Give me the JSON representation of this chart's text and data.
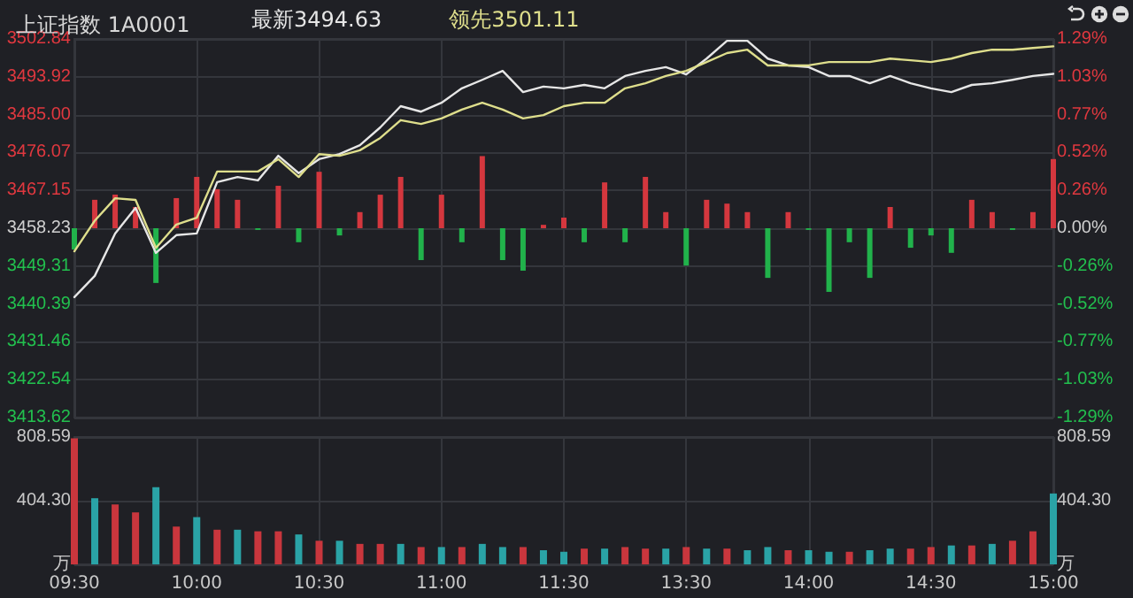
{
  "chart_data": [
    {
      "type": "line",
      "title": "上证指数 1A0001",
      "series": [
        {
          "type": "bar",
          "base": [
            3458.23,
            3458.23,
            3458.23,
            3458.23,
            3458.23,
            3458.23,
            3458.23,
            3458.23,
            3458.23,
            3458.23,
            3458.23,
            3458.23,
            3458.23,
            3458.23,
            3458.23,
            3458.23,
            3458.23,
            3458.23,
            3458.23,
            3458.23,
            3458.23,
            3458.23,
            3458.23,
            3458.23,
            3458.23,
            3458.23,
            3458.23,
            3458.23,
            3458.23,
            3458.23,
            3458.23,
            3458.23,
            3458.23,
            3458.23,
            3458.23,
            3458.23,
            3458.23,
            3458.23,
            3458.23,
            3458.23,
            3458.23,
            3458.23,
            3458.23,
            3458.23,
            3458.23,
            3458.23,
            3458.23,
            3458.23,
            3458.23
          ],
          "values": [
            -5,
            6.7,
            7.9,
            5,
            -12.9,
            7.1,
            12.1,
            9.2,
            6.7,
            -0.4,
            10,
            -3.3,
            13.3,
            -1.7,
            3.8,
            7.9,
            12.1,
            -7.5,
            7.9,
            -3.3,
            17,
            -7.5,
            -10,
            0.8,
            2.5,
            -3.3,
            10.8,
            -3.3,
            12.1,
            3.8,
            -8.8,
            6.7,
            5.8,
            3.8,
            -11.7,
            3.8,
            -0.4,
            -15,
            -3.3,
            -11.7,
            5,
            -4.6,
            -1.7,
            -5.8,
            6.7,
            3.8,
            -0.4,
            3.8,
            16.3
          ],
          "colors": [
            "#21b24b",
            "#d4373e",
            "#d4373e",
            "#d4373e",
            "#21b24b",
            "#d4373e",
            "#d4373e",
            "#d4373e",
            "#d4373e",
            "#21b24b",
            "#d4373e",
            "#21b24b",
            "#d4373e",
            "#21b24b",
            "#d4373e",
            "#d4373e",
            "#d4373e",
            "#21b24b",
            "#d4373e",
            "#21b24b",
            "#d4373e",
            "#21b24b",
            "#21b24b",
            "#d4373e",
            "#d4373e",
            "#21b24b",
            "#d4373e",
            "#21b24b",
            "#d4373e",
            "#d4373e",
            "#21b24b",
            "#d4373e",
            "#d4373e",
            "#d4373e",
            "#21b24b",
            "#d4373e",
            "#21b24b",
            "#21b24b",
            "#21b24b",
            "#21b24b",
            "#d4373e",
            "#21b24b",
            "#21b24b",
            "#21b24b",
            "#d4373e",
            "#d4373e",
            "#21b24b",
            "#d4373e",
            "#d4373e"
          ]
        },
        {
          "name": "最新3494.63",
          "color": "#e6e6e6",
          "values": [
            3442,
            3447,
            3457,
            3463,
            3452.4,
            3456.6,
            3457,
            3469.1,
            3470.3,
            3469.5,
            3475.3,
            3471.2,
            3474.5,
            3475.7,
            3477.8,
            3482,
            3487,
            3485.7,
            3487.8,
            3491.2,
            3493.2,
            3495.3,
            3490.3,
            3491.6,
            3491.2,
            3492,
            3491.2,
            3494.1,
            3495.3,
            3496.2,
            3494.5,
            3498.2,
            3502.4,
            3502.4,
            3498.2,
            3496.6,
            3496.2,
            3494.1,
            3494.1,
            3492.4,
            3494.1,
            3492.4,
            3491.2,
            3490.3,
            3492,
            3492.4,
            3493.2,
            3494.1,
            3494.6
          ]
        },
        {
          "name": "领先3501.11",
          "color": "#dede8c",
          "values": [
            3452.8,
            3460,
            3465.3,
            3464.9,
            3453.6,
            3459.1,
            3460.7,
            3471.6,
            3471.6,
            3471.6,
            3474.5,
            3470.3,
            3475.7,
            3475.3,
            3476.6,
            3479.5,
            3483.7,
            3482.8,
            3484.1,
            3486.2,
            3487.8,
            3486.2,
            3484.1,
            3484.9,
            3487,
            3487.8,
            3487.8,
            3491.2,
            3492.4,
            3494.1,
            3495.3,
            3497.4,
            3499.5,
            3500.3,
            3496.6,
            3496.6,
            3496.6,
            3497.4,
            3497.4,
            3497.4,
            3498.2,
            3497.8,
            3497.4,
            3498.2,
            3499.5,
            3500.3,
            3500.3,
            3500.7,
            3501.1
          ]
        }
      ],
      "ylim": [
        3413.62,
        3502.84
      ],
      "yticks": [
        3413.62,
        3422.54,
        3431.46,
        3440.39,
        3449.31,
        3458.23,
        3467.15,
        3476.07,
        {
          "value": 3485,
          "label": "3485.00"
        },
        3493.92,
        3502.84
      ],
      "y2lim": [
        -1.29,
        1.29
      ],
      "y2ticks": [
        {
          "value": -1.29,
          "label": "-1.29%"
        },
        {
          "value": -1.03,
          "label": "-1.03%"
        },
        {
          "value": -0.77,
          "label": "-0.77%"
        },
        {
          "value": -0.52,
          "label": "-0.52%"
        },
        {
          "value": -0.26,
          "label": "-0.26%"
        },
        {
          "value": 0,
          "label": "0.00%"
        },
        {
          "value": 0.26,
          "label": "0.26%"
        },
        {
          "value": 0.52,
          "label": "0.52%"
        },
        {
          "value": 0.77,
          "label": "0.77%"
        },
        {
          "value": 1.03,
          "label": "1.03%"
        },
        {
          "value": 1.29,
          "label": "1.29%"
        }
      ],
      "tick_labels": "y",
      "grid": true,
      "legend": "top left",
      "marker": "none",
      "line_style": "solid"
    },
    {
      "type": "bar",
      "categories": [
        "09:30",
        null,
        null,
        null,
        null,
        null,
        "10:00",
        null,
        null,
        null,
        null,
        null,
        "10:30",
        null,
        null,
        null,
        null,
        null,
        "11:00",
        null,
        null,
        null,
        null,
        null,
        "11:30",
        null,
        null,
        null,
        null,
        null,
        "13:30",
        null,
        null,
        null,
        null,
        null,
        "14:00",
        null,
        null,
        null,
        null,
        null,
        "14:30",
        null,
        null,
        null,
        null,
        null,
        "15:00"
      ],
      "values": [
        800,
        420,
        380,
        330,
        490,
        240,
        300,
        220,
        220,
        210,
        210,
        190,
        150,
        150,
        130,
        130,
        130,
        110,
        110,
        110,
        130,
        110,
        110,
        90,
        80,
        100,
        100,
        110,
        100,
        100,
        110,
        100,
        100,
        90,
        110,
        90,
        90,
        80,
        80,
        90,
        100,
        100,
        110,
        120,
        120,
        130,
        150,
        210,
        450
      ],
      "colors": [
        "#c9363d",
        "#2aa3a6",
        "#c9363d",
        "#c9363d",
        "#2aa3a6",
        "#c9363d",
        "#2aa3a6",
        "#c9363d",
        "#2aa3a6",
        "#c9363d",
        "#c9363d",
        "#2aa3a6",
        "#c9363d",
        "#2aa3a6",
        "#c9363d",
        "#c9363d",
        "#2aa3a6",
        "#c9363d",
        "#2aa3a6",
        "#c9363d",
        "#2aa3a6",
        "#2aa3a6",
        "#c9363d",
        "#2aa3a6",
        "#2aa3a6",
        "#c9363d",
        "#2aa3a6",
        "#c9363d",
        "#c9363d",
        "#2aa3a6",
        "#c9363d",
        "#2aa3a6",
        "#c9363d",
        "#2aa3a6",
        "#2aa3a6",
        "#c9363d",
        "#2aa3a6",
        "#2aa3a6",
        "#c9363d",
        "#2aa3a6",
        "#2aa3a6",
        "#c9363d",
        "#c9363d",
        "#2aa3a6",
        "#c9363d",
        "#2aa3a6",
        "#c9363d",
        "#c9363d",
        "#2aa3a6"
      ],
      "ylim": [
        0,
        808.59
      ],
      "yticks": [
        {
          "value": 0,
          "label": "万"
        },
        {
          "value": 404.3,
          "label": "404.30"
        },
        808.59
      ],
      "y2lim": [
        0,
        808.59
      ],
      "y2ticks": [
        {
          "value": 0,
          "label": "万"
        },
        {
          "value": 404.3,
          "label": "404.30"
        },
        808.59
      ],
      "grid": true
    }
  ]
}
